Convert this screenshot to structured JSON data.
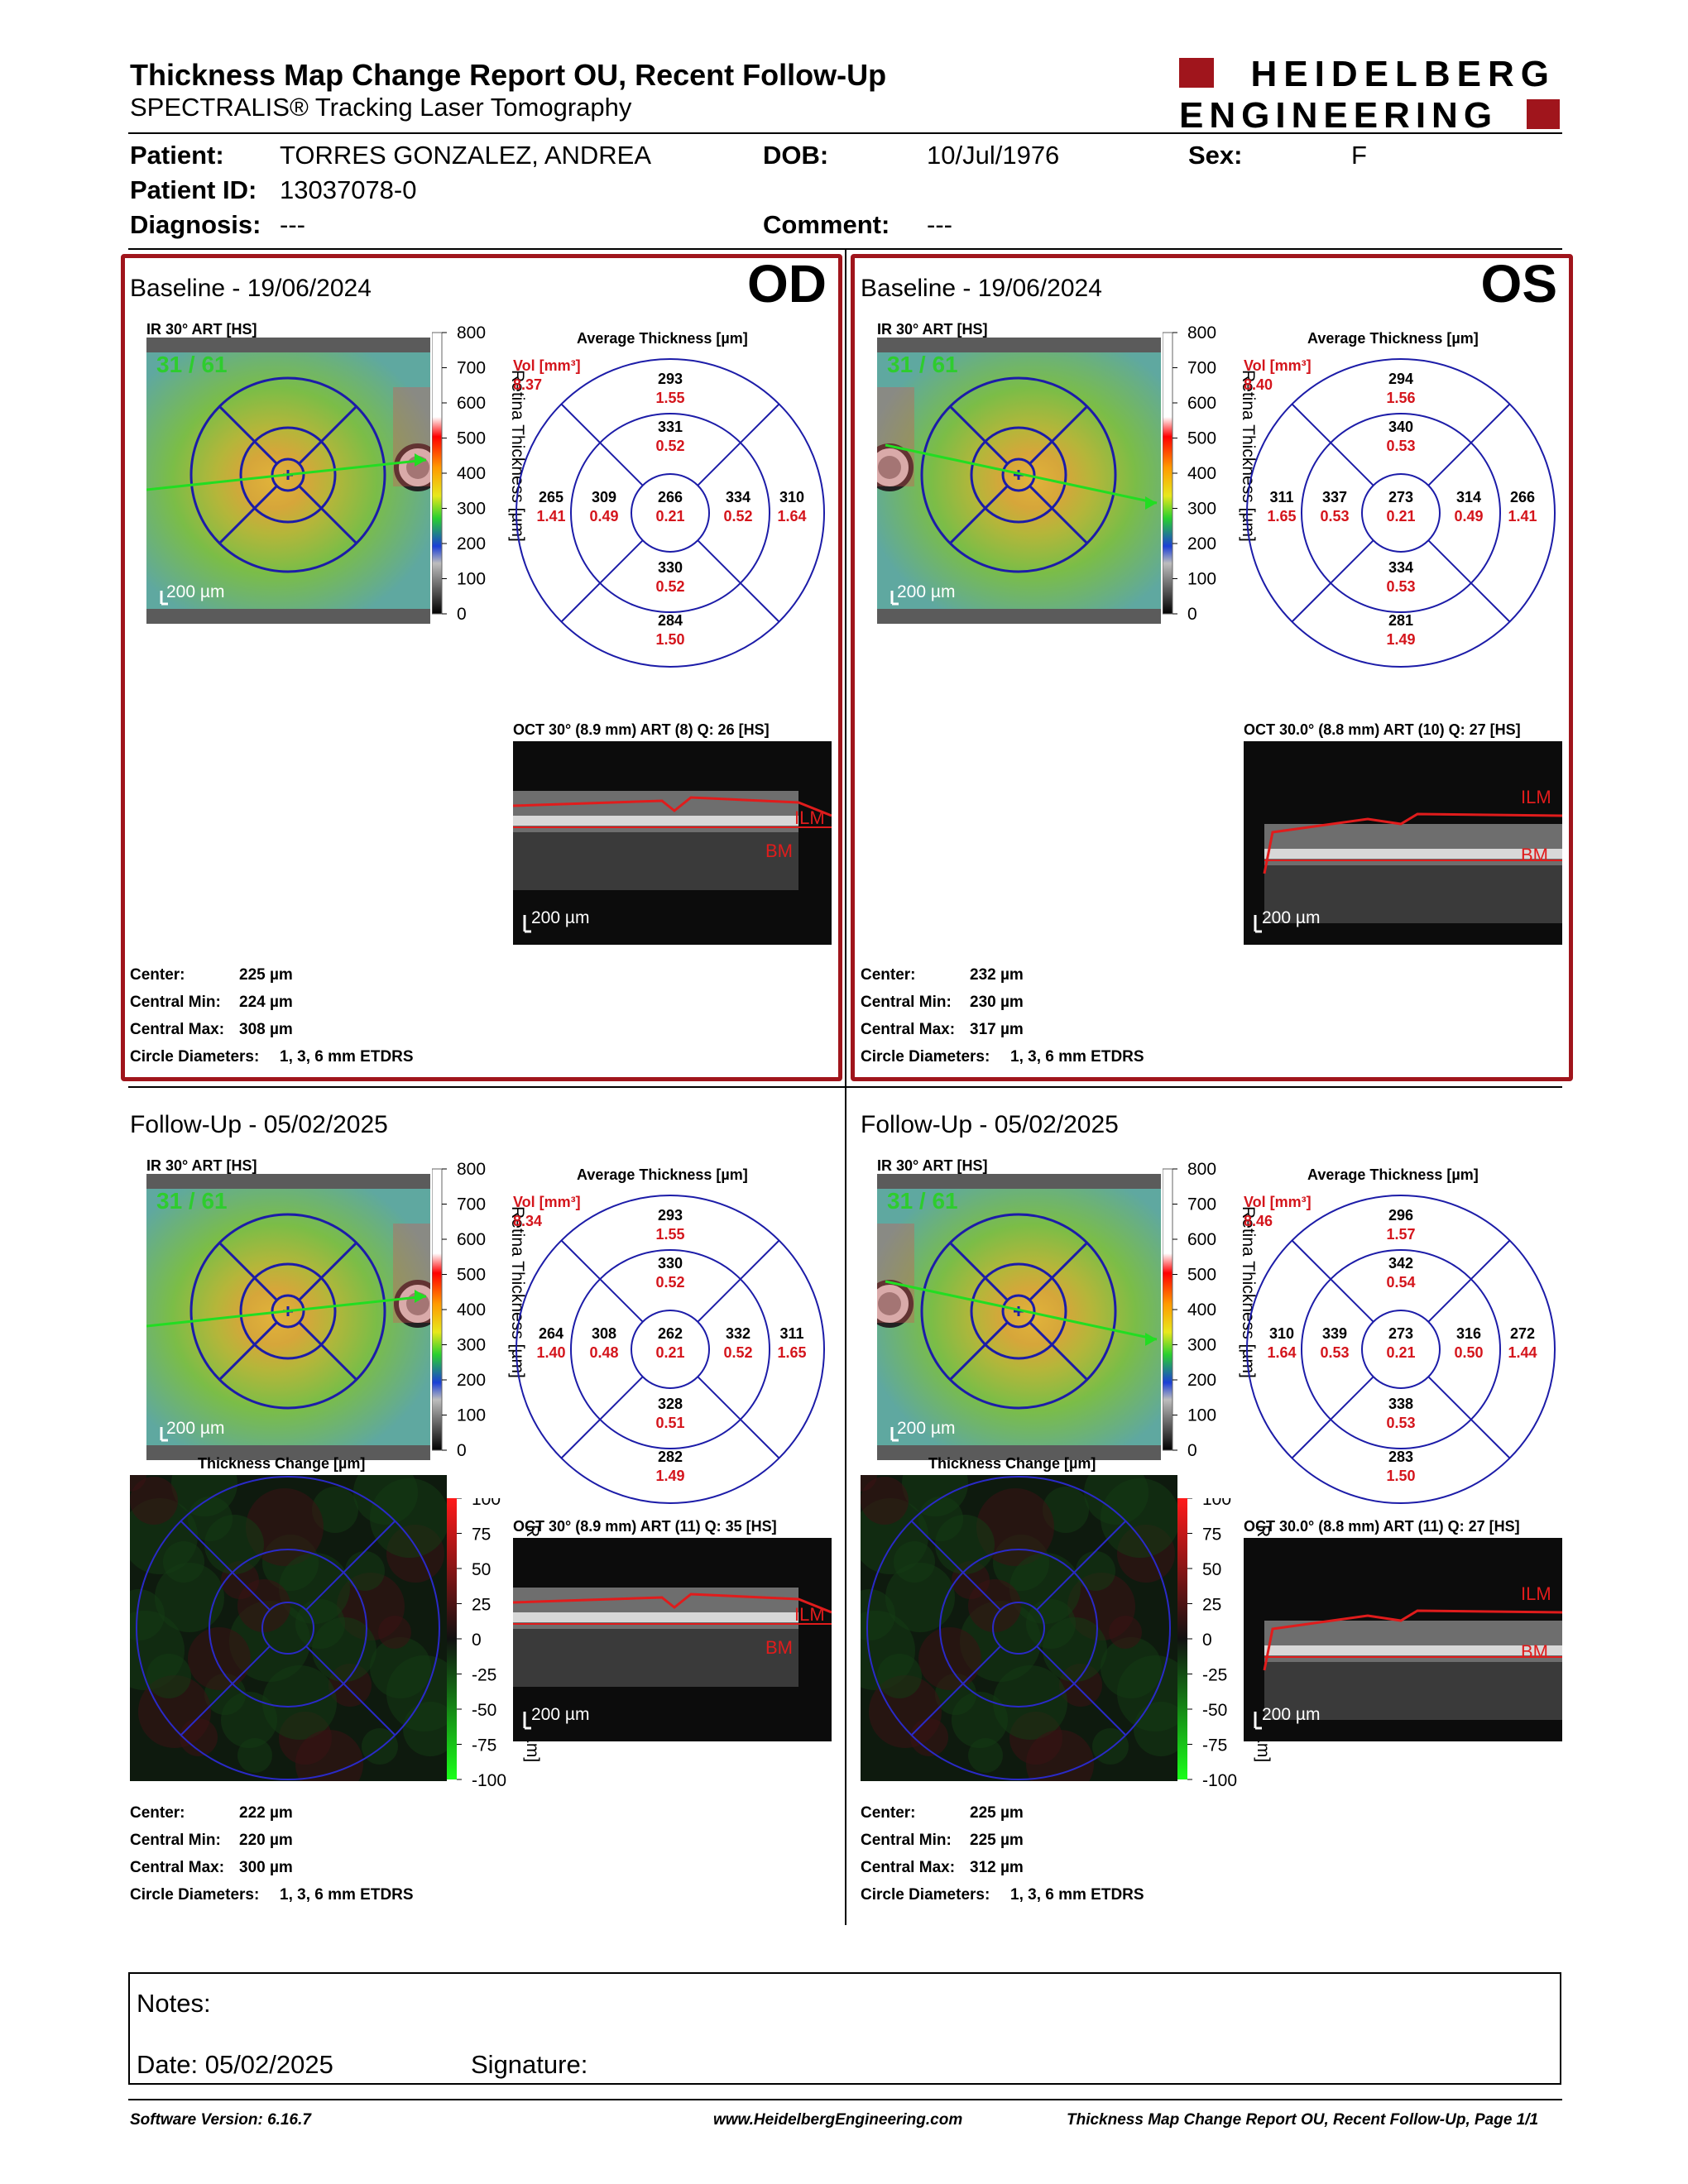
{
  "header": {
    "title": "Thickness Map Change Report OU, Recent Follow-Up",
    "subtitle": "SPECTRALIS® Tracking Laser Tomography",
    "logo_line1": "HEIDELBERG",
    "logo_line2": "ENGINEERING"
  },
  "patient": {
    "patient_label": "Patient:",
    "patient_name": "TORRES GONZALEZ, ANDREA",
    "dob_label": "DOB:",
    "dob": "10/Jul/1976",
    "sex_label": "Sex:",
    "sex": "F",
    "id_label": "Patient ID:",
    "id": "13037078-0",
    "diagnosis_label": "Diagnosis:",
    "diagnosis": "---",
    "comment_label": "Comment:",
    "comment": "---"
  },
  "colors": {
    "accent_red": "#a0151c",
    "value_red": "#d4151c",
    "grid_blue": "#1c1ca8",
    "green_label": "#2ecc2e"
  },
  "panels": [
    {
      "section": "Baseline - 19/06/2024",
      "eye": "OD",
      "ir_label": "IR 30° ART [HS]",
      "corner_label": "31 / 61",
      "scale": "200 µm",
      "avg_title": "Average Thickness [µm]",
      "vol_label": "Vol [mm³]",
      "vol_value": "8.37",
      "colorbar_title": "Retina Thickness [µm]",
      "colorbar_ticks": [
        "800",
        "700",
        "600",
        "500",
        "400",
        "300",
        "200",
        "100",
        "0"
      ],
      "sectors": {
        "outer_top": [
          "293",
          "1.55"
        ],
        "inner_top": [
          "331",
          "0.52"
        ],
        "outer_left": [
          "265",
          "1.41"
        ],
        "inner_left": [
          "309",
          "0.49"
        ],
        "center": [
          "266",
          "0.21"
        ],
        "inner_right": [
          "334",
          "0.52"
        ],
        "outer_right": [
          "310",
          "1.64"
        ],
        "inner_bottom": [
          "330",
          "0.52"
        ],
        "outer_bottom": [
          "284",
          "1.50"
        ]
      },
      "oct_label": "OCT 30° (8.9 mm) ART (8) Q: 26 [HS]",
      "oct_scale": "200 µm",
      "ilm": "ILM",
      "bm": "BM",
      "stats": {
        "center_label": "Center:",
        "center": "225 µm",
        "min_label": "Central Min:",
        "min": "224 µm",
        "max_label": "Central Max:",
        "max": "308 µm",
        "circle_label": "Circle Diameters:",
        "circle": "1, 3, 6 mm ETDRS"
      }
    },
    {
      "section": "Baseline - 19/06/2024",
      "eye": "OS",
      "ir_label": "IR 30° ART [HS]",
      "corner_label": "31 / 61",
      "scale": "200 µm",
      "avg_title": "Average Thickness [µm]",
      "vol_label": "Vol [mm³]",
      "vol_value": "8.40",
      "colorbar_title": "Retina Thickness [µm]",
      "colorbar_ticks": [
        "800",
        "700",
        "600",
        "500",
        "400",
        "300",
        "200",
        "100",
        "0"
      ],
      "sectors": {
        "outer_top": [
          "294",
          "1.56"
        ],
        "inner_top": [
          "340",
          "0.53"
        ],
        "outer_left": [
          "311",
          "1.65"
        ],
        "inner_left": [
          "337",
          "0.53"
        ],
        "center": [
          "273",
          "0.21"
        ],
        "inner_right": [
          "314",
          "0.49"
        ],
        "outer_right": [
          "266",
          "1.41"
        ],
        "inner_bottom": [
          "334",
          "0.53"
        ],
        "outer_bottom": [
          "281",
          "1.49"
        ]
      },
      "oct_label": "OCT 30.0° (8.8 mm) ART (10) Q: 27 [HS]",
      "oct_scale": "200 µm",
      "ilm": "ILM",
      "bm": "BM",
      "stats": {
        "center_label": "Center:",
        "center": "232 µm",
        "min_label": "Central Min:",
        "min": "230 µm",
        "max_label": "Central Max:",
        "max": "317 µm",
        "circle_label": "Circle Diameters:",
        "circle": "1, 3, 6 mm ETDRS"
      }
    },
    {
      "section": "Follow-Up - 05/02/2025",
      "eye": "",
      "ir_label": "IR 30° ART [HS]",
      "corner_label": "31 / 61",
      "scale": "200 µm",
      "avg_title": "Average Thickness [µm]",
      "vol_label": "Vol [mm³]",
      "vol_value": "8.34",
      "colorbar_title": "Retina Thickness [µm]",
      "colorbar_ticks": [
        "800",
        "700",
        "600",
        "500",
        "400",
        "300",
        "200",
        "100",
        "0"
      ],
      "sectors": {
        "outer_top": [
          "293",
          "1.55"
        ],
        "inner_top": [
          "330",
          "0.52"
        ],
        "outer_left": [
          "264",
          "1.40"
        ],
        "inner_left": [
          "308",
          "0.48"
        ],
        "center": [
          "262",
          "0.21"
        ],
        "inner_right": [
          "332",
          "0.52"
        ],
        "outer_right": [
          "311",
          "1.65"
        ],
        "inner_bottom": [
          "328",
          "0.51"
        ],
        "outer_bottom": [
          "282",
          "1.49"
        ]
      },
      "change_title": "Thickness Change [µm]",
      "change_bar_title": "Retina Thickness Change [µm]",
      "change_ticks": [
        "100",
        "75",
        "50",
        "25",
        "0",
        "-25",
        "-50",
        "-75",
        "-100"
      ],
      "oct_label": "OCT 30° (8.9 mm) ART (11) Q: 35 [HS]",
      "oct_scale": "200 µm",
      "ilm": "ILM",
      "bm": "BM",
      "stats": {
        "center_label": "Center:",
        "center": "222 µm",
        "min_label": "Central Min:",
        "min": "220 µm",
        "max_label": "Central Max:",
        "max": "300 µm",
        "circle_label": "Circle Diameters:",
        "circle": "1, 3, 6 mm ETDRS"
      }
    },
    {
      "section": "Follow-Up - 05/02/2025",
      "eye": "",
      "ir_label": "IR 30° ART [HS]",
      "corner_label": "31 / 61",
      "scale": "200 µm",
      "avg_title": "Average Thickness [µm]",
      "vol_label": "Vol [mm³]",
      "vol_value": "8.46",
      "colorbar_title": "Retina Thickness [µm]",
      "colorbar_ticks": [
        "800",
        "700",
        "600",
        "500",
        "400",
        "300",
        "200",
        "100",
        "0"
      ],
      "sectors": {
        "outer_top": [
          "296",
          "1.57"
        ],
        "inner_top": [
          "342",
          "0.54"
        ],
        "outer_left": [
          "310",
          "1.64"
        ],
        "inner_left": [
          "339",
          "0.53"
        ],
        "center": [
          "273",
          "0.21"
        ],
        "inner_right": [
          "316",
          "0.50"
        ],
        "outer_right": [
          "272",
          "1.44"
        ],
        "inner_bottom": [
          "338",
          "0.53"
        ],
        "outer_bottom": [
          "283",
          "1.50"
        ]
      },
      "change_title": "Thickness Change [µm]",
      "change_bar_title": "Retina Thickness Change [µm]",
      "change_ticks": [
        "100",
        "75",
        "50",
        "25",
        "0",
        "-25",
        "-50",
        "-75",
        "-100"
      ],
      "oct_label": "OCT 30.0° (8.8 mm) ART (11) Q: 27 [HS]",
      "oct_scale": "200 µm",
      "ilm": "ILM",
      "bm": "BM",
      "stats": {
        "center_label": "Center:",
        "center": "225 µm",
        "min_label": "Central Min:",
        "min": "225 µm",
        "max_label": "Central Max:",
        "max": "312 µm",
        "circle_label": "Circle Diameters:",
        "circle": "1, 3, 6 mm ETDRS"
      }
    }
  ],
  "notes": {
    "notes_label": "Notes:",
    "date_label": "Date: 05/02/2025",
    "signature_label": "Signature:"
  },
  "footer": {
    "version": "Software Version: 6.16.7",
    "website": "www.HeidelbergEngineering.com",
    "page": "Thickness Map Change Report OU, Recent Follow-Up, Page 1/1"
  }
}
